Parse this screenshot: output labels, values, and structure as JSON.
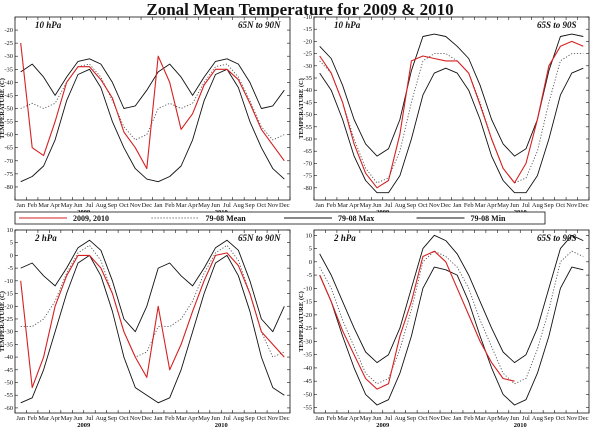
{
  "title": "Zonal Mean Temperature for 2009 & 2010",
  "colors": {
    "current": "#d62020",
    "mean": "#555555",
    "max": "#111111",
    "min": "#111111"
  },
  "legend": [
    {
      "key": "current",
      "label": "2009, 2010",
      "style": "solid-red"
    },
    {
      "key": "mean",
      "label": "79-08 Mean",
      "style": "dotted"
    },
    {
      "key": "max",
      "label": "79-08 Max",
      "style": "solid"
    },
    {
      "key": "min",
      "label": "79-08 Min",
      "style": "solid"
    }
  ],
  "chart_data": [
    {
      "type": "line",
      "level": "10 hPa",
      "region": "65N to 90N",
      "ylabel": "TEMPERATURE (C)",
      "ylim": [
        -85,
        -15
      ],
      "yticks": [
        -80,
        -75,
        -70,
        -65,
        -60,
        -55,
        -50,
        -45,
        -40,
        -35,
        -30,
        -25,
        -20
      ],
      "months": [
        "Jan",
        "Feb",
        "Mar",
        "Apr",
        "May",
        "Jun",
        "Jul",
        "Aug",
        "Sep",
        "Oct",
        "Nov",
        "Dec",
        "Jan",
        "Feb",
        "Mar",
        "Apr",
        "May",
        "Jun",
        "Jul",
        "Aug",
        "Sep",
        "Oct",
        "Nov",
        "Dec"
      ],
      "years": [
        "2009",
        "2010"
      ],
      "x": [
        0.5,
        1.5,
        2.5,
        3.5,
        4.5,
        5.5,
        6.5,
        7.5,
        8.5,
        9.5,
        10.5,
        11.5,
        12.5,
        13.5,
        14.5,
        15.5,
        16.5,
        17.5,
        18.5,
        19.5,
        20.5,
        21.5,
        22.5,
        23.5
      ],
      "series": [
        {
          "key": "max",
          "values": [
            -36,
            -33,
            -38,
            -45,
            -38,
            -32,
            -31,
            -33,
            -40,
            -50,
            -49,
            -43,
            -36,
            -33,
            -38,
            -45,
            -38,
            -32,
            -31,
            -33,
            -40,
            -50,
            -49,
            -43
          ]
        },
        {
          "key": "mean",
          "values": [
            -50,
            -48,
            -50,
            -48,
            -40,
            -34,
            -33,
            -38,
            -47,
            -57,
            -62,
            -60,
            -50,
            -48,
            -50,
            -48,
            -40,
            -34,
            -33,
            -38,
            -47,
            -57,
            -62,
            -60
          ]
        },
        {
          "key": "min",
          "values": [
            -78,
            -76,
            -72,
            -62,
            -47,
            -37,
            -35,
            -42,
            -55,
            -65,
            -73,
            -77,
            -78,
            -76,
            -72,
            -62,
            -47,
            -37,
            -35,
            -42,
            -55,
            -65,
            -73,
            -77
          ]
        },
        {
          "key": "current",
          "values": [
            -25,
            -65,
            -68,
            -55,
            -40,
            -34,
            -34,
            -39,
            -46,
            -59,
            -65,
            -73,
            -30,
            -40,
            -58,
            -52,
            -41,
            -35,
            -35,
            -39,
            -48,
            -58,
            -64,
            -70
          ]
        }
      ]
    },
    {
      "type": "line",
      "level": "10 hPa",
      "region": "65S to 90S",
      "ylabel": "TEMPERATURE (C)",
      "ylim": [
        -85,
        -10
      ],
      "yticks": [
        -80,
        -75,
        -70,
        -65,
        -60,
        -55,
        -50,
        -45,
        -40,
        -35,
        -30,
        -25,
        -20,
        -15,
        -10
      ],
      "months": [
        "Jan",
        "Feb",
        "Mar",
        "Apr",
        "May",
        "Jun",
        "Jul",
        "Aug",
        "Sep",
        "Oct",
        "Nov",
        "Dec",
        "Jan",
        "Feb",
        "Mar",
        "Apr",
        "May",
        "Jun",
        "Jul",
        "Aug",
        "Sep",
        "Oct",
        "Nov",
        "Dec"
      ],
      "years": [
        "2009",
        "2010"
      ],
      "x": [
        0.5,
        1.5,
        2.5,
        3.5,
        4.5,
        5.5,
        6.5,
        7.5,
        8.5,
        9.5,
        10.5,
        11.5,
        12.5,
        13.5,
        14.5,
        15.5,
        16.5,
        17.5,
        18.5,
        19.5,
        20.5,
        21.5,
        22.5,
        23.5
      ],
      "series": [
        {
          "key": "max",
          "values": [
            -22,
            -27,
            -38,
            -52,
            -62,
            -67,
            -64,
            -52,
            -32,
            -18,
            -17,
            -18,
            -22,
            -27,
            -38,
            -52,
            -62,
            -67,
            -64,
            -52,
            -32,
            -18,
            -17,
            -18
          ]
        },
        {
          "key": "mean",
          "values": [
            -28,
            -33,
            -45,
            -60,
            -72,
            -78,
            -76,
            -65,
            -45,
            -28,
            -25,
            -25,
            -28,
            -33,
            -45,
            -60,
            -72,
            -78,
            -76,
            -65,
            -45,
            -28,
            -25,
            -25
          ]
        },
        {
          "key": "min",
          "values": [
            -33,
            -40,
            -52,
            -67,
            -77,
            -82,
            -82,
            -75,
            -60,
            -42,
            -33,
            -31,
            -33,
            -40,
            -52,
            -67,
            -77,
            -82,
            -82,
            -75,
            -60,
            -42,
            -33,
            -31
          ]
        },
        {
          "key": "current",
          "values": [
            -26,
            -33,
            -45,
            -62,
            -74,
            -80,
            -77,
            -58,
            -28,
            -26,
            -27,
            -28,
            -28,
            -33,
            -46,
            -60,
            -72,
            -78,
            -70,
            -52,
            -30,
            -22,
            -20,
            -22
          ]
        }
      ]
    },
    {
      "type": "line",
      "level": "2 hPa",
      "region": "65N to 90N",
      "ylabel": "TEMPERATURE (C)",
      "ylim": [
        -62,
        10
      ],
      "yticks": [
        -60,
        -55,
        -50,
        -45,
        -40,
        -35,
        -30,
        -25,
        -20,
        -15,
        -10,
        -5,
        0,
        5,
        10
      ],
      "months": [
        "Jan",
        "Feb",
        "Mar",
        "Apr",
        "May",
        "Jun",
        "Jul",
        "Aug",
        "Sep",
        "Oct",
        "Nov",
        "Dec",
        "Jan",
        "Feb",
        "Mar",
        "Apr",
        "May",
        "Jun",
        "Jul",
        "Aug",
        "Sep",
        "Oct",
        "Nov",
        "Dec"
      ],
      "years": [
        "2009",
        "2010"
      ],
      "x": [
        0.5,
        1.5,
        2.5,
        3.5,
        4.5,
        5.5,
        6.5,
        7.5,
        8.5,
        9.5,
        10.5,
        11.5,
        12.5,
        13.5,
        14.5,
        15.5,
        16.5,
        17.5,
        18.5,
        19.5,
        20.5,
        21.5,
        22.5,
        23.5
      ],
      "series": [
        {
          "key": "max",
          "values": [
            -5,
            -3,
            -8,
            -12,
            -5,
            3,
            6,
            2,
            -10,
            -25,
            -30,
            -20,
            -5,
            -3,
            -8,
            -12,
            -5,
            3,
            6,
            2,
            -10,
            -25,
            -30,
            -20
          ]
        },
        {
          "key": "mean",
          "values": [
            -28,
            -28,
            -25,
            -18,
            -7,
            1,
            4,
            -2,
            -15,
            -30,
            -40,
            -38,
            -28,
            -28,
            -25,
            -18,
            -7,
            1,
            4,
            -2,
            -15,
            -30,
            -40,
            -38
          ]
        },
        {
          "key": "min",
          "values": [
            -58,
            -56,
            -45,
            -30,
            -15,
            -3,
            0,
            -8,
            -22,
            -40,
            -52,
            -55,
            -58,
            -56,
            -45,
            -30,
            -15,
            -3,
            0,
            -8,
            -22,
            -40,
            -52,
            -55
          ]
        },
        {
          "key": "current",
          "values": [
            -10,
            -52,
            -40,
            -20,
            -8,
            0,
            0,
            -5,
            -15,
            -30,
            -40,
            -48,
            -20,
            -45,
            -35,
            -22,
            -10,
            0,
            1,
            -4,
            -15,
            -30,
            -35,
            -40
          ]
        }
      ]
    },
    {
      "type": "line",
      "level": "2 hPa",
      "region": "65S to 90S",
      "ylabel": "TEMPERATURE (C)",
      "ylim": [
        -57,
        12
      ],
      "yticks": [
        -55,
        -50,
        -45,
        -40,
        -35,
        -30,
        -25,
        -20,
        -15,
        -10,
        -5,
        0,
        5,
        10
      ],
      "months": [
        "Jan",
        "Feb",
        "Mar",
        "Apr",
        "May",
        "Jun",
        "Jul",
        "Aug",
        "Sep",
        "Oct",
        "Nov",
        "Dec",
        "Jan",
        "Feb",
        "Mar",
        "Apr",
        "May",
        "Jun",
        "Jul",
        "Aug",
        "Sep",
        "Oct",
        "Nov",
        "Dec"
      ],
      "years": [
        "2009",
        "2010"
      ],
      "x": [
        0.5,
        1.5,
        2.5,
        3.5,
        4.5,
        5.5,
        6.5,
        7.5,
        8.5,
        9.5,
        10.5,
        11.5,
        12.5,
        13.5,
        14.5,
        15.5,
        16.5,
        17.5,
        18.5,
        19.5,
        20.5,
        21.5,
        22.5,
        23.5
      ],
      "series": [
        {
          "key": "max",
          "values": [
            3,
            -5,
            -15,
            -25,
            -34,
            -38,
            -35,
            -25,
            -10,
            5,
            10,
            8,
            3,
            -5,
            -15,
            -25,
            -34,
            -38,
            -35,
            -25,
            -10,
            5,
            10,
            8
          ]
        },
        {
          "key": "mean",
          "values": [
            -2,
            -10,
            -22,
            -32,
            -42,
            -46,
            -44,
            -33,
            -18,
            0,
            4,
            2,
            -2,
            -10,
            -22,
            -32,
            -42,
            -46,
            -44,
            -33,
            -18,
            0,
            4,
            2
          ]
        },
        {
          "key": "min",
          "values": [
            -5,
            -15,
            -28,
            -40,
            -50,
            -54,
            -52,
            -42,
            -28,
            -10,
            -2,
            -3,
            -5,
            -15,
            -28,
            -40,
            -50,
            -54,
            -52,
            -42,
            -28,
            -10,
            -2,
            -3
          ]
        },
        {
          "key": "current",
          "values": [
            -5,
            -15,
            -26,
            -35,
            -44,
            -48,
            -46,
            -28,
            -15,
            2,
            4,
            0,
            -10,
            -20,
            -30,
            -38,
            -44,
            -45,
            null,
            null,
            null,
            null,
            null,
            null
          ]
        }
      ]
    }
  ]
}
